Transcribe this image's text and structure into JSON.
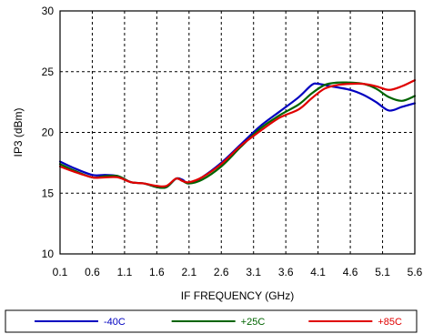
{
  "chart_data": {
    "type": "line",
    "title": "",
    "xlabel": "IF FREQUENCY (GHz)",
    "ylabel": "IP3 (dBm)",
    "xlim": [
      0.1,
      5.6
    ],
    "ylim": [
      10,
      30
    ],
    "xticks": [
      "0.1",
      "0.6",
      "1.1",
      "1.6",
      "2.1",
      "2.6",
      "3.1",
      "3.6",
      "4.1",
      "4.6",
      "5.1",
      "5.6"
    ],
    "yticks": [
      "10",
      "15",
      "20",
      "25",
      "30"
    ],
    "grid": true,
    "legend_position": "bottom",
    "series": [
      {
        "name": "-40C",
        "color": "#0000c0",
        "x": [
          0.1,
          0.3,
          0.6,
          0.8,
          1.0,
          1.2,
          1.4,
          1.6,
          1.75,
          1.9,
          2.0,
          2.1,
          2.3,
          2.6,
          2.9,
          3.2,
          3.5,
          3.8,
          4.0,
          4.1,
          4.3,
          4.6,
          4.8,
          5.0,
          5.2,
          5.4,
          5.6
        ],
        "y": [
          17.6,
          17.1,
          16.5,
          16.5,
          16.4,
          15.9,
          15.8,
          15.5,
          15.5,
          16.2,
          16.1,
          15.8,
          16.3,
          17.5,
          19.0,
          20.5,
          21.7,
          22.9,
          23.9,
          24.0,
          23.8,
          23.5,
          23.1,
          22.5,
          21.8,
          22.1,
          22.4
        ]
      },
      {
        "name": "+25C",
        "color": "#006400",
        "x": [
          0.1,
          0.3,
          0.6,
          0.8,
          1.0,
          1.2,
          1.4,
          1.6,
          1.75,
          1.9,
          2.0,
          2.1,
          2.3,
          2.6,
          2.9,
          3.2,
          3.5,
          3.8,
          4.0,
          4.2,
          4.4,
          4.6,
          4.8,
          5.0,
          5.2,
          5.4,
          5.6
        ],
        "y": [
          17.4,
          16.9,
          16.3,
          16.4,
          16.4,
          15.9,
          15.8,
          15.5,
          15.5,
          16.2,
          16.0,
          15.8,
          16.1,
          17.2,
          18.8,
          20.3,
          21.4,
          22.3,
          23.2,
          23.9,
          24.1,
          24.1,
          24.0,
          23.6,
          22.9,
          22.6,
          23.0
        ]
      },
      {
        "name": "+85C",
        "color": "#e00000",
        "x": [
          0.1,
          0.3,
          0.6,
          0.8,
          1.0,
          1.2,
          1.4,
          1.6,
          1.75,
          1.9,
          2.0,
          2.1,
          2.3,
          2.6,
          2.9,
          3.2,
          3.5,
          3.8,
          4.0,
          4.2,
          4.4,
          4.6,
          4.8,
          5.0,
          5.2,
          5.4,
          5.6
        ],
        "y": [
          17.2,
          16.8,
          16.3,
          16.3,
          16.3,
          15.9,
          15.8,
          15.6,
          15.6,
          16.2,
          16.0,
          15.9,
          16.3,
          17.4,
          18.9,
          20.1,
          21.2,
          21.9,
          22.8,
          23.6,
          23.9,
          24.0,
          24.0,
          23.8,
          23.5,
          23.8,
          24.3
        ]
      }
    ]
  }
}
